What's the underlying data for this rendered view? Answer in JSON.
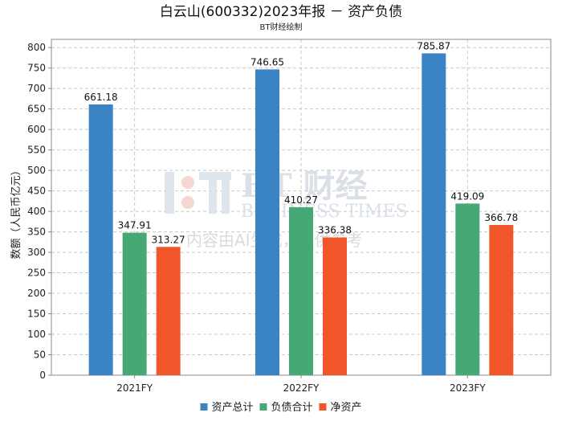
{
  "chart_data": {
    "type": "bar",
    "title": "白云山(600332)2023年报 － 资产负债",
    "subtitle": "BT财经绘制",
    "ylabel": "数额（人民币亿元）",
    "xlabel": "",
    "categories": [
      "2021FY",
      "2022FY",
      "2023FY"
    ],
    "series": [
      {
        "name": "资产总计",
        "color": "#3a84c4",
        "values": [
          661.18,
          746.65,
          785.87
        ]
      },
      {
        "name": "负债合计",
        "color": "#46a874",
        "values": [
          347.91,
          410.27,
          419.09
        ]
      },
      {
        "name": "净资产",
        "color": "#f0562a",
        "values": [
          313.27,
          336.38,
          366.78
        ]
      }
    ],
    "ylim": [
      0,
      820
    ],
    "yticks": [
      0,
      50,
      100,
      150,
      200,
      250,
      300,
      350,
      400,
      450,
      500,
      550,
      600,
      650,
      700,
      750,
      800
    ],
    "grid": true,
    "legend_position": "bottom-center",
    "watermark": {
      "brand": "BT 财经",
      "english": "BUSINESS TIMES",
      "notice": "内容由AI生成，仅供参考"
    }
  }
}
